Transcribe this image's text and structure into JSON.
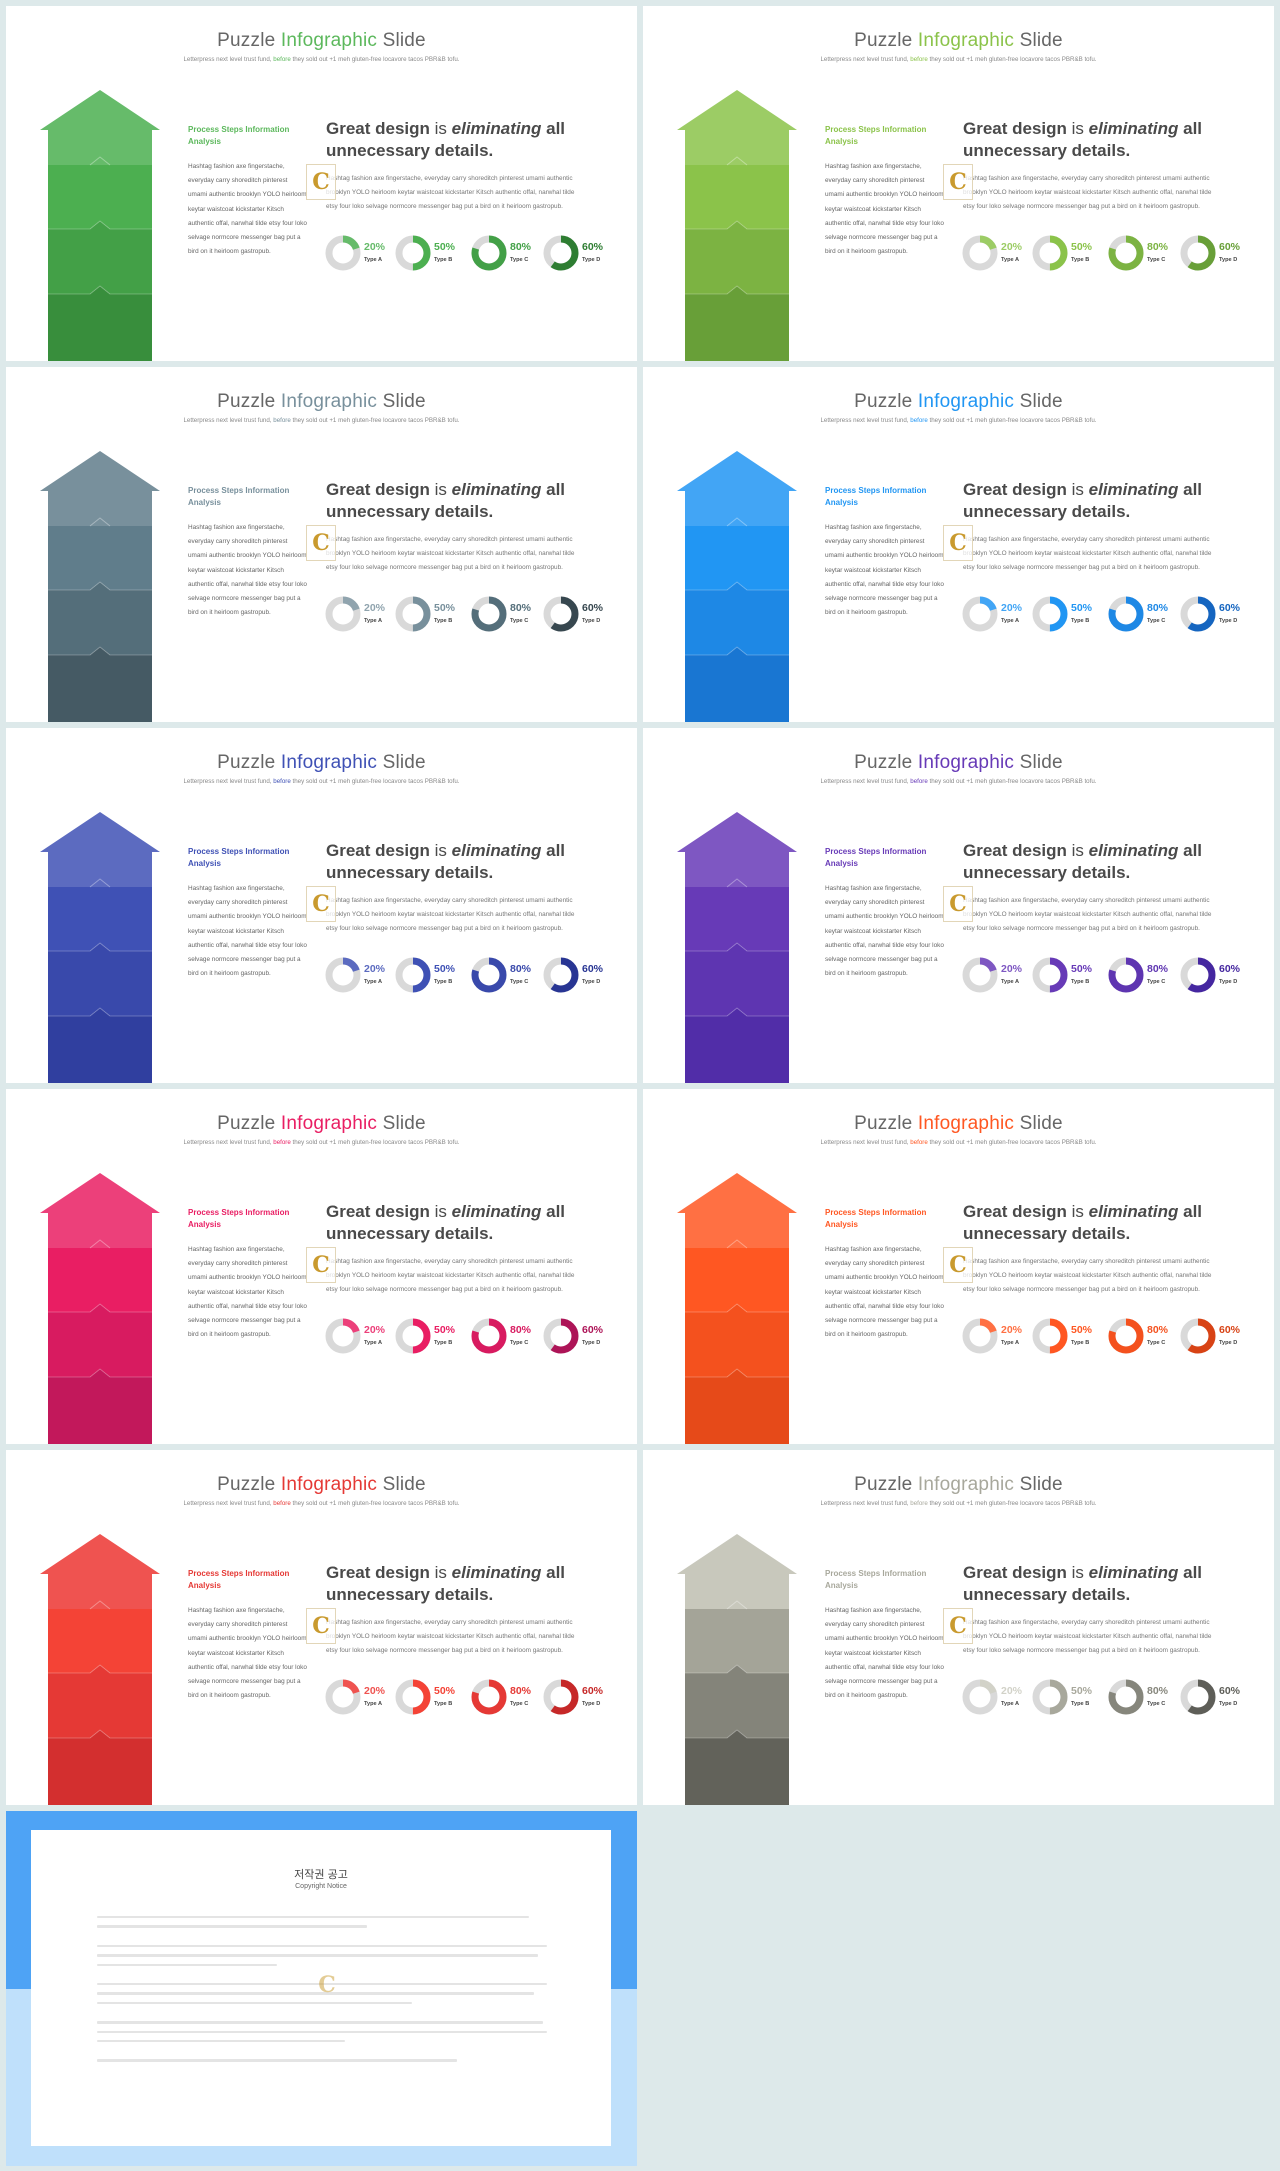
{
  "slides": [
    {
      "title_prefix": "Puzzle ",
      "title_highlight": "Infographic",
      "title_suffix": " Slide",
      "subtitle_prefix": "Letterpress next level trust fund, ",
      "subtitle_highlight": "before",
      "subtitle_suffix": " they sold out +1 meh gluten-free locavore tacos PBR&B tofu.",
      "side_heading": "Process Steps Information Analysis",
      "side_body": "Hashtag fashion axe fingerstache, everyday carry shoreditch pinterest umami authentic brooklyn YOLO heirloom keytar waistcoat kickstarter Kitsch authentic offal, narwhal tilde etsy four loko selvage normcore messenger bag put a bird on it heirloom gastropub.",
      "headline_bold": "Great design",
      "headline_is": " is ",
      "headline_italic": "eliminating",
      "headline_rest": " all unnecessary details.",
      "body": "Hashtag fashion axe fingerstache, everyday carry shoreditch pinterest umami authentic brooklyn YOLO heirloom keytar waistcoat kickstarter Kitsch authentic offal, narwhal tilde etsy four loko selvage normcore messenger bag put a bird on it heirloom gastropub.",
      "logo_letter": "C",
      "donuts": [
        {
          "percent": "20%",
          "value": 20,
          "label": "Type A"
        },
        {
          "percent": "50%",
          "value": 50,
          "label": "Type B"
        },
        {
          "percent": "80%",
          "value": 80,
          "label": "Type C"
        },
        {
          "percent": "60%",
          "value": 60,
          "label": "Type D"
        }
      ]
    }
  ],
  "themes": [
    {
      "name": "green",
      "accent": "#5cb85c",
      "tiers": [
        "#66bb6a",
        "#4caf50",
        "#43a047",
        "#388e3c"
      ],
      "donuts": [
        "#66bb6a",
        "#4caf50",
        "#43a047",
        "#2e7d32"
      ]
    },
    {
      "name": "lime",
      "accent": "#8bc34a",
      "tiers": [
        "#9ccc65",
        "#8bc34a",
        "#7cb342",
        "#689f38"
      ],
      "donuts": [
        "#9ccc65",
        "#8bc34a",
        "#7cb342",
        "#689f38"
      ]
    },
    {
      "name": "slate",
      "accent": "#78909c",
      "tiers": [
        "#78909c",
        "#607d8b",
        "#546e7a",
        "#455a64"
      ],
      "donuts": [
        "#90a4ae",
        "#78909c",
        "#546e7a",
        "#37474f"
      ]
    },
    {
      "name": "blue",
      "accent": "#2196f3",
      "tiers": [
        "#42a5f5",
        "#2196f3",
        "#1e88e5",
        "#1976d2"
      ],
      "donuts": [
        "#42a5f5",
        "#2196f3",
        "#1e88e5",
        "#1565c0"
      ]
    },
    {
      "name": "indigo",
      "accent": "#3f51b5",
      "tiers": [
        "#5c6bc0",
        "#3f51b5",
        "#3949ab",
        "#303f9f"
      ],
      "donuts": [
        "#5c6bc0",
        "#3f51b5",
        "#3949ab",
        "#283593"
      ]
    },
    {
      "name": "purple",
      "accent": "#673ab7",
      "tiers": [
        "#7e57c2",
        "#673ab7",
        "#5e35b1",
        "#512da8"
      ],
      "donuts": [
        "#7e57c2",
        "#673ab7",
        "#5e35b1",
        "#4527a0"
      ]
    },
    {
      "name": "pink",
      "accent": "#e91e63",
      "tiers": [
        "#ec407a",
        "#e91e63",
        "#d81b60",
        "#c2185b"
      ],
      "donuts": [
        "#ec407a",
        "#e91e63",
        "#d81b60",
        "#ad1457"
      ]
    },
    {
      "name": "orange",
      "accent": "#ff5722",
      "tiers": [
        "#ff7043",
        "#ff5722",
        "#f4511e",
        "#e64a19"
      ],
      "donuts": [
        "#ff7043",
        "#ff5722",
        "#f4511e",
        "#d84315"
      ]
    },
    {
      "name": "red",
      "accent": "#e53935",
      "tiers": [
        "#ef5350",
        "#f44336",
        "#e53935",
        "#d32f2f"
      ],
      "donuts": [
        "#ef5350",
        "#f44336",
        "#e53935",
        "#c62828"
      ]
    },
    {
      "name": "gray",
      "accent": "#a8a89c",
      "tiers": [
        "#c8c8bc",
        "#a4a498",
        "#84847a",
        "#62625a"
      ],
      "donuts": [
        "#d2d2c8",
        "#a8a89c",
        "#86867c",
        "#5e5e58"
      ]
    }
  ],
  "notice": {
    "title": "저작권 공고",
    "subtitle": "Copyright Notice",
    "logo_letter": "C"
  }
}
